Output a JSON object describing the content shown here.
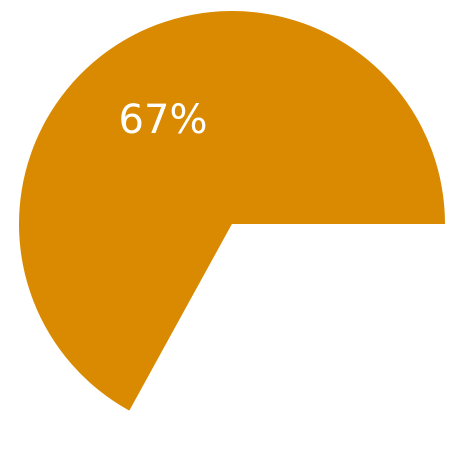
{
  "chart_data": {
    "type": "pie",
    "slices": [
      {
        "label": "67%",
        "value": 67,
        "color": "#D98A00"
      },
      {
        "label": "",
        "value": 33,
        "color": "#FFFFFF"
      }
    ],
    "start_angle_deg": 0,
    "direction": "counterclockwise"
  }
}
